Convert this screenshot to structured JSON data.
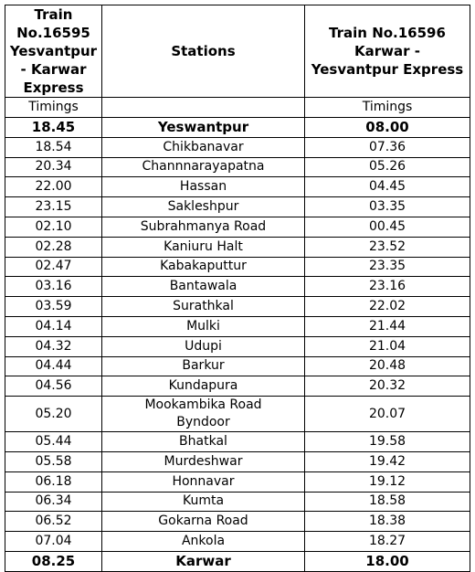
{
  "table": {
    "header": [
      [
        "Train No.16595",
        "Yesvantpur",
        "- Karwar",
        "Express"
      ],
      [
        "Stations"
      ],
      [
        "Train No.16596",
        "Karwar -",
        "Yesvantpur Express"
      ]
    ],
    "subheader": [
      "Timings",
      "Timings"
    ],
    "rows": [
      [
        "18.45",
        "Yeswantpur",
        "08.00"
      ],
      [
        "18.54",
        "Chikbanavar",
        "07.36"
      ],
      [
        "20.34",
        "Channnarayapatna",
        "05.26"
      ],
      [
        "22.00",
        "Hassan",
        "04.45"
      ],
      [
        "23.15",
        "Sakleshpur",
        "03.35"
      ],
      [
        "02.10",
        "Subrahmanya Road",
        "00.45"
      ],
      [
        "02.28",
        "Kaniuru Halt",
        "23.52"
      ],
      [
        "02.47",
        "Kabakaputtur",
        "23.35"
      ],
      [
        "03.16",
        "Bantawala",
        "23.16"
      ],
      [
        "03.59",
        "Surathkal",
        "22.02"
      ],
      [
        "04.14",
        "Mulki",
        "21.44"
      ],
      [
        "04.32",
        "Udupi",
        "21.04"
      ],
      [
        "04.44",
        "Barkur",
        "20.48"
      ],
      [
        "04.56",
        "Kundapura",
        "20.32"
      ],
      [
        "05.20",
        "Mookambika Road Byndoor",
        "20.07"
      ],
      [
        "05.44",
        "Bhatkal",
        "19.58"
      ],
      [
        "05.58",
        "Murdeshwar",
        "19.42"
      ],
      [
        "06.18",
        "Honnavar",
        "19.12"
      ],
      [
        "06.34",
        "Kumta",
        "18.58"
      ],
      [
        "06.52",
        "Gokarna Road",
        "18.38"
      ],
      [
        "07.04",
        "Ankola",
        "18.27"
      ],
      [
        "08.25",
        "Karwar",
        "18.00"
      ]
    ]
  }
}
